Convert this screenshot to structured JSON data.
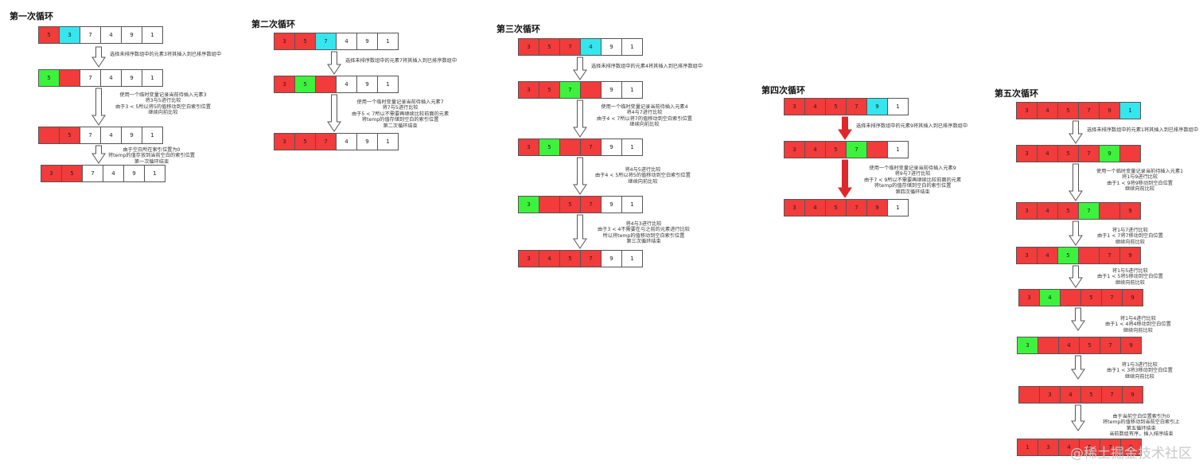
{
  "loops": [
    {
      "title": "第一次循环",
      "rows": [
        [
          {
            "v": "5",
            "c": "red"
          },
          {
            "v": "3",
            "c": "cyan"
          },
          {
            "v": "7",
            "c": "white"
          },
          {
            "v": "4",
            "c": "white"
          },
          {
            "v": "9",
            "c": "white"
          },
          {
            "v": "1",
            "c": "white"
          }
        ],
        [
          {
            "v": "5",
            "c": "green"
          },
          {
            "v": "",
            "c": "red"
          },
          {
            "v": "7",
            "c": "white"
          },
          {
            "v": "4",
            "c": "white"
          },
          {
            "v": "9",
            "c": "white"
          },
          {
            "v": "1",
            "c": "white"
          }
        ],
        [
          {
            "v": "",
            "c": "red"
          },
          {
            "v": "5",
            "c": "red"
          },
          {
            "v": "7",
            "c": "white"
          },
          {
            "v": "4",
            "c": "white"
          },
          {
            "v": "9",
            "c": "white"
          },
          {
            "v": "1",
            "c": "white"
          }
        ],
        [
          {
            "v": "3",
            "c": "red"
          },
          {
            "v": "5",
            "c": "red"
          },
          {
            "v": "7",
            "c": "white"
          },
          {
            "v": "4",
            "c": "white"
          },
          {
            "v": "9",
            "c": "white"
          },
          {
            "v": "1",
            "c": "white"
          }
        ]
      ],
      "notes": [
        [
          "选择未排序数组中的元素3将其插入到已排序数组中"
        ],
        [
          "使用一个临时变量记录当前待插入元素3",
          "将3与5进行比较",
          "由于3 < 5所以将5的值移动到空白索引位置",
          "继续向前比较"
        ],
        [
          "由于空白所在索引位置为0",
          "将temp的值存放到当前空白的索引位置",
          "第一次循环结束"
        ]
      ]
    },
    {
      "title": "第二次循环",
      "rows": [
        [
          {
            "v": "3",
            "c": "red"
          },
          {
            "v": "5",
            "c": "red"
          },
          {
            "v": "7",
            "c": "cyan"
          },
          {
            "v": "4",
            "c": "white"
          },
          {
            "v": "9",
            "c": "white"
          },
          {
            "v": "1",
            "c": "white"
          }
        ],
        [
          {
            "v": "3",
            "c": "red"
          },
          {
            "v": "5",
            "c": "green"
          },
          {
            "v": "",
            "c": "red"
          },
          {
            "v": "4",
            "c": "white"
          },
          {
            "v": "9",
            "c": "white"
          },
          {
            "v": "1",
            "c": "white"
          }
        ],
        [
          {
            "v": "3",
            "c": "red"
          },
          {
            "v": "5",
            "c": "red"
          },
          {
            "v": "7",
            "c": "red"
          },
          {
            "v": "4",
            "c": "white"
          },
          {
            "v": "9",
            "c": "white"
          },
          {
            "v": "1",
            "c": "white"
          }
        ]
      ],
      "notes": [
        [
          "选择未排序数组中的元素7将其插入到已排序数组中"
        ],
        [
          "使用一个临时变量记录当前待插入元素7",
          "将7与5进行比较",
          "由于5 < 7所以不需要再继续比较前面的元素",
          "将temp的值存储到空白的索引位置",
          "第二次循环结束"
        ]
      ]
    },
    {
      "title": "第三次循环",
      "rows": [
        [
          {
            "v": "3",
            "c": "red"
          },
          {
            "v": "5",
            "c": "red"
          },
          {
            "v": "7",
            "c": "red"
          },
          {
            "v": "4",
            "c": "cyan"
          },
          {
            "v": "9",
            "c": "white"
          },
          {
            "v": "1",
            "c": "white"
          }
        ],
        [
          {
            "v": "3",
            "c": "red"
          },
          {
            "v": "5",
            "c": "red"
          },
          {
            "v": "7",
            "c": "green"
          },
          {
            "v": "",
            "c": "red"
          },
          {
            "v": "9",
            "c": "white"
          },
          {
            "v": "1",
            "c": "white"
          }
        ],
        [
          {
            "v": "3",
            "c": "red"
          },
          {
            "v": "5",
            "c": "green"
          },
          {
            "v": "",
            "c": "red"
          },
          {
            "v": "7",
            "c": "red"
          },
          {
            "v": "9",
            "c": "white"
          },
          {
            "v": "1",
            "c": "white"
          }
        ],
        [
          {
            "v": "3",
            "c": "green"
          },
          {
            "v": "",
            "c": "red"
          },
          {
            "v": "5",
            "c": "red"
          },
          {
            "v": "7",
            "c": "red"
          },
          {
            "v": "9",
            "c": "white"
          },
          {
            "v": "1",
            "c": "white"
          }
        ],
        [
          {
            "v": "3",
            "c": "red"
          },
          {
            "v": "4",
            "c": "red"
          },
          {
            "v": "5",
            "c": "red"
          },
          {
            "v": "7",
            "c": "red"
          },
          {
            "v": "9",
            "c": "white"
          },
          {
            "v": "1",
            "c": "white"
          }
        ]
      ],
      "notes": [
        [
          "选择未排序数组中的元素4将其插入到已排序数组中"
        ],
        [
          "使用一个临时变量记录当前待插入元素4",
          "将4与7进行比较",
          "由于4 < 7所以将7的值移动到空白索引位置",
          "继续向前比较"
        ],
        [
          "将4与5进行比较",
          "由于4 < 5所以将5的值移动到空白索引位置",
          "继续向前比较"
        ],
        [
          "将4与3进行比较",
          "由于3 < 4不需要在与之前的元素进行比较",
          "所以将temp的值移动到空白索引位置",
          "第三次循环结束"
        ]
      ]
    },
    {
      "title": "第四次循环",
      "rows": [
        [
          {
            "v": "3",
            "c": "red"
          },
          {
            "v": "4",
            "c": "red"
          },
          {
            "v": "5",
            "c": "red"
          },
          {
            "v": "7",
            "c": "red"
          },
          {
            "v": "9",
            "c": "cyan"
          },
          {
            "v": "1",
            "c": "white"
          }
        ],
        [
          {
            "v": "3",
            "c": "red"
          },
          {
            "v": "4",
            "c": "red"
          },
          {
            "v": "5",
            "c": "red"
          },
          {
            "v": "7",
            "c": "green"
          },
          {
            "v": "",
            "c": "red"
          },
          {
            "v": "1",
            "c": "white"
          }
        ],
        [
          {
            "v": "3",
            "c": "red"
          },
          {
            "v": "4",
            "c": "red"
          },
          {
            "v": "5",
            "c": "red"
          },
          {
            "v": "7",
            "c": "red"
          },
          {
            "v": "9",
            "c": "red"
          },
          {
            "v": "1",
            "c": "white"
          }
        ]
      ],
      "notes": [
        [
          "选择未排序数组中的元素9将其插入到已排序数组中"
        ],
        [
          "使用一个临时变量记录当前待插入元素9",
          "将9与7进行比较",
          "由于7 < 9所以不需要再继续比较前面的元素",
          "将temp的值存储到空白的索引位置",
          "第四次循环结束"
        ]
      ]
    },
    {
      "title": "第五次循环",
      "rows": [
        [
          {
            "v": "3",
            "c": "red"
          },
          {
            "v": "4",
            "c": "red"
          },
          {
            "v": "5",
            "c": "red"
          },
          {
            "v": "7",
            "c": "red"
          },
          {
            "v": "9",
            "c": "red"
          },
          {
            "v": "1",
            "c": "cyan"
          }
        ],
        [
          {
            "v": "3",
            "c": "red"
          },
          {
            "v": "4",
            "c": "red"
          },
          {
            "v": "5",
            "c": "red"
          },
          {
            "v": "7",
            "c": "red"
          },
          {
            "v": "9",
            "c": "green"
          },
          {
            "v": "",
            "c": "red"
          }
        ],
        [
          {
            "v": "3",
            "c": "red"
          },
          {
            "v": "4",
            "c": "red"
          },
          {
            "v": "5",
            "c": "red"
          },
          {
            "v": "7",
            "c": "green"
          },
          {
            "v": "",
            "c": "red"
          },
          {
            "v": "9",
            "c": "red"
          }
        ],
        [
          {
            "v": "3",
            "c": "red"
          },
          {
            "v": "4",
            "c": "red"
          },
          {
            "v": "5",
            "c": "green"
          },
          {
            "v": "",
            "c": "red"
          },
          {
            "v": "7",
            "c": "red"
          },
          {
            "v": "9",
            "c": "red"
          }
        ],
        [
          {
            "v": "3",
            "c": "red"
          },
          {
            "v": "4",
            "c": "green"
          },
          {
            "v": "",
            "c": "red"
          },
          {
            "v": "5",
            "c": "red"
          },
          {
            "v": "7",
            "c": "red"
          },
          {
            "v": "9",
            "c": "red"
          }
        ],
        [
          {
            "v": "3",
            "c": "green"
          },
          {
            "v": "",
            "c": "red"
          },
          {
            "v": "4",
            "c": "red"
          },
          {
            "v": "5",
            "c": "red"
          },
          {
            "v": "7",
            "c": "red"
          },
          {
            "v": "9",
            "c": "red"
          }
        ],
        [
          {
            "v": "",
            "c": "red"
          },
          {
            "v": "3",
            "c": "red"
          },
          {
            "v": "4",
            "c": "red"
          },
          {
            "v": "5",
            "c": "red"
          },
          {
            "v": "7",
            "c": "red"
          },
          {
            "v": "9",
            "c": "red"
          }
        ],
        [
          {
            "v": "1",
            "c": "red"
          },
          {
            "v": "3",
            "c": "red"
          },
          {
            "v": "4",
            "c": "red"
          },
          {
            "v": "5",
            "c": "red"
          },
          {
            "v": "7",
            "c": "red"
          },
          {
            "v": "9",
            "c": "red"
          }
        ]
      ],
      "notes": [
        [
          "选择未排序数组中的元素1将其插入到已排序数组中"
        ],
        [
          "使用一个临时变量记录当前待插入元素1",
          "将1与9进行比较",
          "由于1 < 9将9移动到空白位置",
          "继续向前比较"
        ],
        [
          "将1与7进行比较",
          "由于1 < 7将7移动到空白位置",
          "继续向前比较"
        ],
        [
          "将1与5进行比较",
          "由于1 < 5将5移动到空白位置",
          "继续向前比较"
        ],
        [
          "将1与4进行比较",
          "由于1 < 4将4移动到空白位置",
          "继续向前比较"
        ],
        [
          "将1与3进行比较",
          "由于1 < 3将3移动到空白位置",
          "继续向前比较"
        ],
        [
          "由于当前空白位置索引为0",
          "将temp的值移动到当前空白索引上",
          "第五循环结束",
          "当前数组有序，插入排序结束"
        ]
      ]
    }
  ],
  "watermark": "@稀土掘金技术社区",
  "colors": {
    "red": "#f23b3b",
    "cyan": "#35e6ee",
    "green": "#3df23d",
    "white": "#ffffff",
    "arrow_red": "#e0262b"
  }
}
